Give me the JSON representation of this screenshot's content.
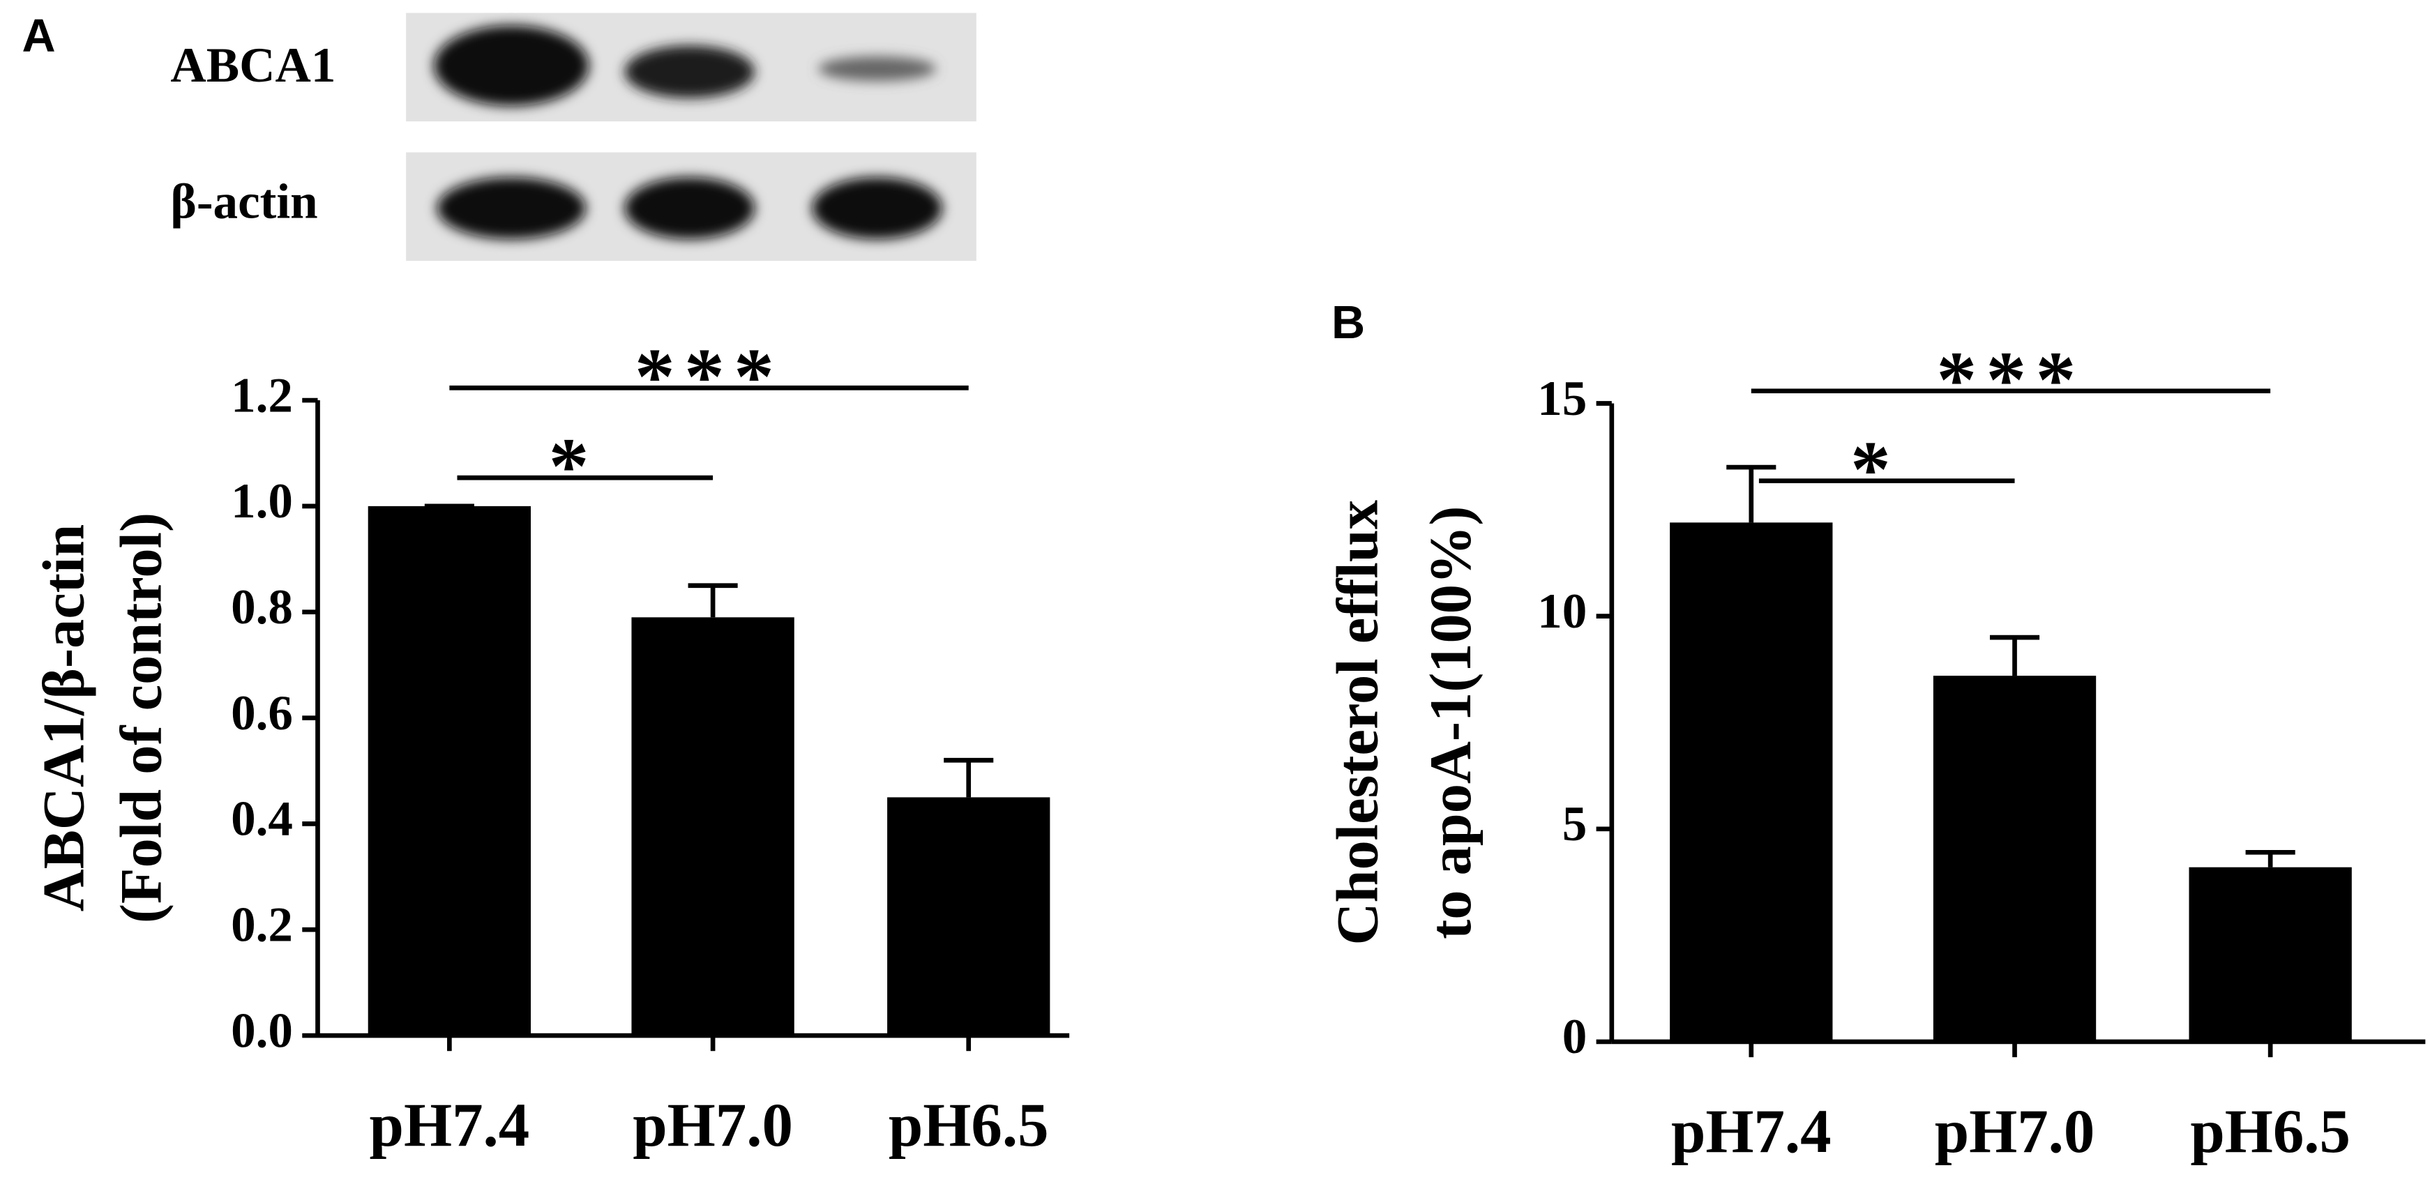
{
  "blot": {
    "labels": [
      "ABCA1",
      "β-actin"
    ]
  },
  "chart_data": [
    {
      "type": "bar",
      "panel_label": "A",
      "y_label": [
        "ABCA1/β-actin",
        "(Fold of control)"
      ],
      "categories": [
        "pH7.4",
        "pH7.0",
        "pH6.5"
      ],
      "values": [
        1.0,
        0.79,
        0.45
      ],
      "errors": [
        0,
        0.06,
        0.07
      ],
      "color": "#000000",
      "ylim": [
        0,
        1.2
      ],
      "yticks": [
        {
          "value": 0,
          "label": "0.0"
        },
        0.2,
        0.4,
        0.6,
        0.8,
        {
          "value": 1,
          "label": "1.0"
        },
        1.2
      ],
      "significance": [
        {
          "from": 0,
          "to": 1,
          "label": "*"
        },
        {
          "from": 0,
          "to": 2,
          "label": "***"
        }
      ]
    },
    {
      "type": "bar",
      "panel_label": "B",
      "y_label": [
        "Cholesterol efflux",
        "to apoA-1(100%)"
      ],
      "categories": [
        "pH7.4",
        "pH7.0",
        "pH6.5"
      ],
      "values": [
        12.2,
        8.6,
        4.1
      ],
      "errors": [
        1.3,
        0.9,
        0.35
      ],
      "color": "#000000",
      "ylim": [
        0,
        15
      ],
      "yticks": [
        0,
        5,
        10,
        15
      ],
      "significance": [
        {
          "from": 0,
          "to": 1,
          "label": "*"
        },
        {
          "from": 0,
          "to": 2,
          "label": "***"
        }
      ]
    }
  ]
}
